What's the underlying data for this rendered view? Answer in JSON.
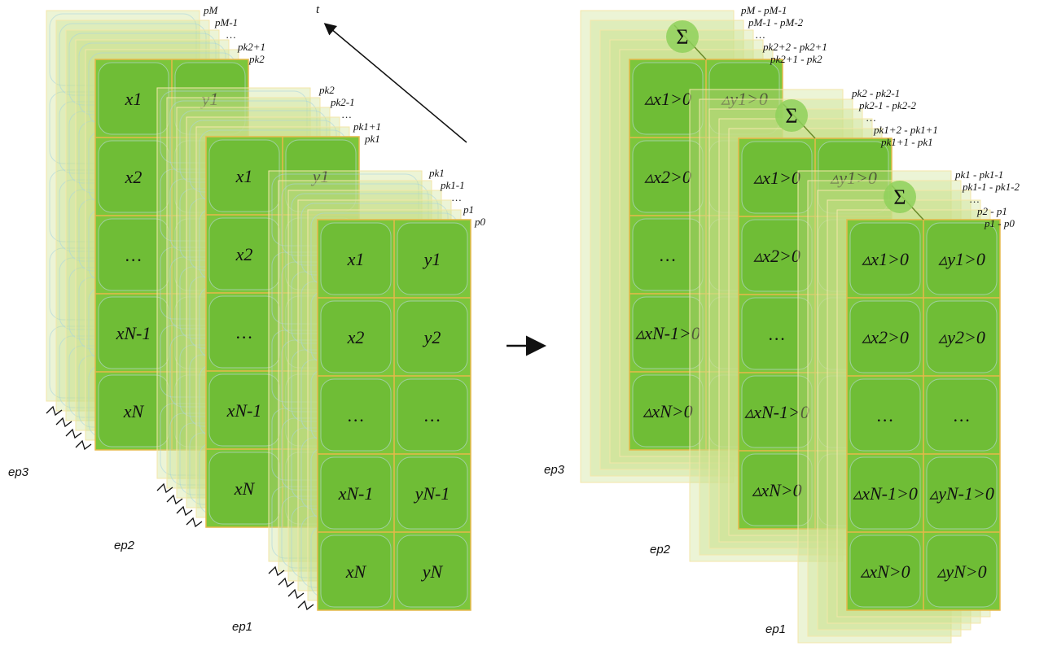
{
  "left": {
    "time_label": "t",
    "panels": [
      {
        "label": "ep3",
        "steps": [
          "pM",
          "pM-1",
          "…",
          "pk2+1",
          "pk2"
        ],
        "cells": [
          [
            "x1",
            "y1"
          ],
          [
            "x2"
          ],
          [
            "…"
          ],
          [
            "xN-1"
          ],
          [
            "xN"
          ]
        ]
      },
      {
        "label": "ep2",
        "steps": [
          "pk2",
          "pk2-1",
          "…",
          "pk1+1",
          "pk1"
        ],
        "cells": [
          [
            "x1",
            "y1"
          ],
          [
            "x2"
          ],
          [
            "…"
          ],
          [
            "xN-1"
          ],
          [
            "xN"
          ]
        ]
      },
      {
        "label": "ep1",
        "steps": [
          "pk1",
          "pk1-1",
          "…",
          "p1",
          "p0"
        ],
        "cells": [
          [
            "x1",
            "y1"
          ],
          [
            "x2",
            "y2"
          ],
          [
            "…",
            "…"
          ],
          [
            "xN-1",
            "yN-1"
          ],
          [
            "xN",
            "yN"
          ]
        ]
      }
    ]
  },
  "right": {
    "sum_symbol": "Σ",
    "panels": [
      {
        "label": "ep3",
        "steps": [
          "pM - pM-1",
          "pM-1 - pM-2",
          "…",
          "pk2+2 - pk2+1",
          "pk2+1 - pk2"
        ],
        "cells": [
          [
            "▵x1>0",
            "▵y1>0"
          ],
          [
            "▵x2>0"
          ],
          [
            "…"
          ],
          [
            "▵xN-1>0"
          ],
          [
            "▵xN>0"
          ]
        ]
      },
      {
        "label": "ep2",
        "steps": [
          "pk2 - pk2-1",
          "pk2-1 - pk2-2",
          "…",
          "pk1+2 - pk1+1",
          "pk1+1 - pk1"
        ],
        "cells": [
          [
            "▵x1>0",
            "▵y1>0"
          ],
          [
            "▵x2>0"
          ],
          [
            "…"
          ],
          [
            "▵xN-1>0"
          ],
          [
            "▵xN>0"
          ]
        ]
      },
      {
        "label": "ep1",
        "steps": [
          "pk1 - pk1-1",
          "pk1-1 - pk1-2",
          "…",
          "p2 - p1",
          "p1 - p0"
        ],
        "cells": [
          [
            "▵x1>0",
            "▵y1>0"
          ],
          [
            "▵x2>0",
            "▵y2>0"
          ],
          [
            "…",
            "…"
          ],
          [
            "▵xN-1>0",
            "▵yN-1>0"
          ],
          [
            "▵xN>0",
            "▵yN>0"
          ]
        ]
      }
    ]
  }
}
